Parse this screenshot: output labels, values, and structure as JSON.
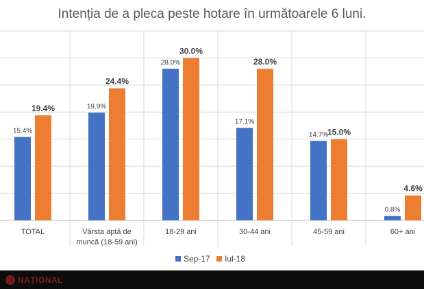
{
  "chart_data": {
    "type": "bar",
    "title": "Intenția de a pleca peste hotare în următoarele 6 luni.",
    "categories": [
      "TOTAL",
      "Vârsta aptă de muncă (18-59 ani)",
      "18-29 ani",
      "30-44 ani",
      "45-59 ani",
      "60+ ani"
    ],
    "category_lines": [
      [
        "TOTAL"
      ],
      [
        "Vârsta aptă de",
        "muncă (18-59 ani)"
      ],
      [
        "18-29 ani"
      ],
      [
        "30-44 ani"
      ],
      [
        "45-59 ani"
      ],
      [
        "60+ ani"
      ]
    ],
    "series": [
      {
        "name": "Sep-17",
        "values": [
          15.4,
          19.9,
          28.0,
          17.1,
          14.7,
          0.8
        ],
        "labels": [
          "15.4%",
          "19.9%",
          "28.0%",
          "17.1%",
          "14.7%",
          "0.8%"
        ],
        "color": "#4472C4"
      },
      {
        "name": "Iul-18",
        "values": [
          19.4,
          24.4,
          30.0,
          28.0,
          15.0,
          4.6
        ],
        "labels": [
          "19.4%",
          "24.4%",
          "30.0%",
          "28.0%",
          "15.0%",
          "4.6%"
        ],
        "color": "#ED7D31"
      }
    ],
    "ylim": [
      0,
      30
    ],
    "grid": true,
    "legend_position": "bottom"
  },
  "watermark": {
    "text": "NAȚIONAL"
  }
}
